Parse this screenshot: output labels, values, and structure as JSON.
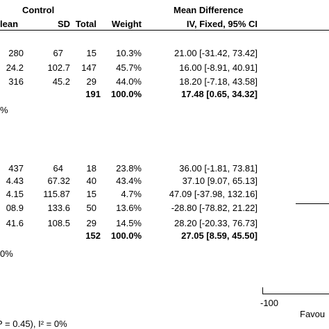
{
  "header": {
    "control": "Control",
    "mean_difference": "Mean Difference",
    "col_mean": "lean",
    "col_sd": "SD",
    "col_total": "Total",
    "col_weight": "Weight",
    "col_method": "IV, Fixed, 95% CI"
  },
  "group1": {
    "rows": [
      {
        "mean": "280",
        "sd": "67",
        "total": "15",
        "weight": "10.3%",
        "ci": "21.00 [-31.42, 73.42]"
      },
      {
        "mean": "24.2",
        "sd": "102.7",
        "total": "147",
        "weight": "45.7%",
        "ci": "16.00 [-8.91, 40.91]"
      },
      {
        "mean": "316",
        "sd": "45.2",
        "total": "29",
        "weight": "44.0%",
        "ci": "18.20 [-7.18, 43.58]"
      }
    ],
    "subtotal": {
      "total": "191",
      "weight": "100.0%",
      "ci": "17.48 [0.65, 34.32]"
    },
    "het_fragment": "%"
  },
  "group2": {
    "rows": [
      {
        "mean": "437",
        "sd": "64",
        "total": "18",
        "weight": "23.8%",
        "ci": "36.00 [-1.81, 73.81]"
      },
      {
        "mean": "4.43",
        "sd": "67.32",
        "total": "40",
        "weight": "43.4%",
        "ci": "37.10 [9.07, 65.13]"
      },
      {
        "mean": "4.15",
        "sd": "115.87",
        "total": "15",
        "weight": "4.7%",
        "ci": "47.09 [-37.98, 132.16]"
      },
      {
        "mean": "08.9",
        "sd": "133.6",
        "total": "50",
        "weight": "13.6%",
        "ci": "-28.80 [-78.82, 21.22]"
      },
      {
        "mean": "41.6",
        "sd": "108.5",
        "total": "29",
        "weight": "14.5%",
        "ci": "28.20 [-20.33, 76.73]"
      }
    ],
    "subtotal": {
      "total": "152",
      "weight": "100.0%",
      "ci": "27.05 [8.59, 45.50]"
    },
    "het_fragment": "0%"
  },
  "axis": {
    "tick_left": "-100",
    "favours_fragment": "Favou"
  },
  "footer": {
    "heterogeneity_fragment": "P = 0.45), I² = 0%"
  }
}
